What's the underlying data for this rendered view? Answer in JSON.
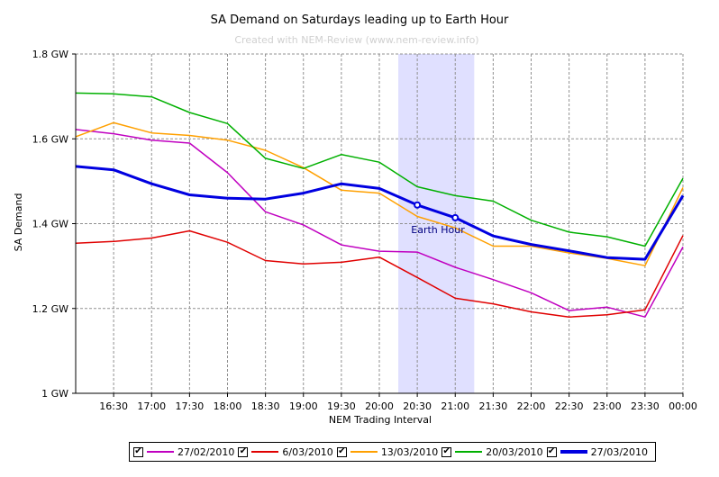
{
  "chart_data": {
    "type": "line",
    "title": "SA Demand on Saturdays leading up to Earth Hour",
    "watermark": "Created with NEM-Review (www.nem-review.info)",
    "xlabel": "NEM Trading Interval",
    "ylabel": "SA Demand",
    "x": [
      "16:00",
      "16:30",
      "17:00",
      "17:30",
      "18:00",
      "18:30",
      "19:00",
      "19:30",
      "20:00",
      "20:30",
      "21:00",
      "21:30",
      "22:00",
      "22:30",
      "23:00",
      "23:30",
      "00:00"
    ],
    "x_tick_labels": [
      "16:30",
      "17:00",
      "17:30",
      "18:00",
      "18:30",
      "19:00",
      "19:30",
      "20:00",
      "20:30",
      "21:00",
      "21:30",
      "22:00",
      "22:30",
      "23:00",
      "23:30",
      "00:00"
    ],
    "ylim": [
      1.0,
      1.8
    ],
    "y_ticks": [
      1.0,
      1.2,
      1.4,
      1.6,
      1.8
    ],
    "y_tick_labels": [
      "1 GW",
      "1.2 GW",
      "1.4 GW",
      "1.6 GW",
      "1.8 GW"
    ],
    "grid": true,
    "legend_position": "bottom",
    "highlight": {
      "label": "Earth Hour",
      "x_start": "20:15",
      "x_end": "21:15",
      "color": "#e0e0ff"
    },
    "series": [
      {
        "name": "27/02/2010",
        "color": "#c000c0",
        "width": 1.5,
        "values": [
          1.622,
          1.612,
          1.597,
          1.59,
          1.52,
          1.428,
          1.397,
          1.35,
          1.335,
          1.333,
          1.297,
          1.268,
          1.237,
          1.195,
          1.203,
          1.18,
          1.345
        ]
      },
      {
        "name": "6/03/2010",
        "color": "#e00000",
        "width": 1.5,
        "values": [
          1.354,
          1.358,
          1.366,
          1.383,
          1.356,
          1.313,
          1.305,
          1.309,
          1.321,
          1.273,
          1.224,
          1.211,
          1.192,
          1.18,
          1.185,
          1.197,
          1.372
        ]
      },
      {
        "name": "13/03/2010",
        "color": "#ffa000",
        "width": 1.5,
        "values": [
          1.605,
          1.638,
          1.614,
          1.608,
          1.597,
          1.573,
          1.532,
          1.479,
          1.472,
          1.417,
          1.39,
          1.347,
          1.347,
          1.331,
          1.318,
          1.301,
          1.485
        ]
      },
      {
        "name": "20/03/2010",
        "color": "#00b000",
        "width": 1.5,
        "values": [
          1.708,
          1.706,
          1.699,
          1.662,
          1.636,
          1.554,
          1.53,
          1.563,
          1.545,
          1.487,
          1.466,
          1.453,
          1.408,
          1.38,
          1.369,
          1.347,
          1.507
        ]
      },
      {
        "name": "27/03/2010",
        "color": "#0000e0",
        "width": 3,
        "values": [
          1.535,
          1.527,
          1.494,
          1.468,
          1.46,
          1.458,
          1.472,
          1.494,
          1.483,
          1.444,
          1.414,
          1.371,
          1.351,
          1.336,
          1.32,
          1.316,
          1.466
        ],
        "markers": [
          9,
          10
        ]
      }
    ]
  }
}
